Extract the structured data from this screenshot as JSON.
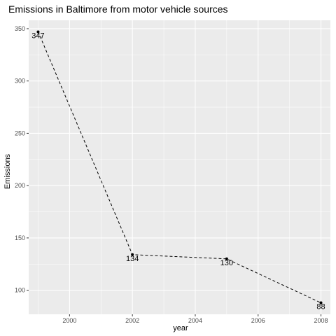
{
  "chart_data": {
    "type": "line",
    "title": "Emissions in Baltimore from motor vehicle sources",
    "xlabel": "year",
    "ylabel": "Emissions",
    "x": [
      1999,
      2002,
      2005,
      2008
    ],
    "values": [
      347,
      134,
      130,
      88
    ],
    "labels": [
      "347",
      "134",
      "130",
      "88"
    ],
    "xlim": [
      1998.7,
      2008.3
    ],
    "ylim": [
      77.0,
      358.0
    ],
    "x_ticks": [
      2000,
      2002,
      2004,
      2006,
      2008
    ],
    "x_tick_labels": [
      "2000",
      "2002",
      "2004",
      "2006",
      "2008"
    ],
    "y_ticks": [
      100,
      150,
      200,
      250,
      300,
      350
    ],
    "y_tick_labels": [
      "100",
      "150",
      "200",
      "250",
      "300",
      "350"
    ],
    "line_style": "dashed",
    "grid": true,
    "legend": "none",
    "colors": {
      "panel_background": "#ebebeb",
      "grid_major": "#ffffff",
      "line": "#000000",
      "tick_text": "#4d4d4d"
    }
  }
}
